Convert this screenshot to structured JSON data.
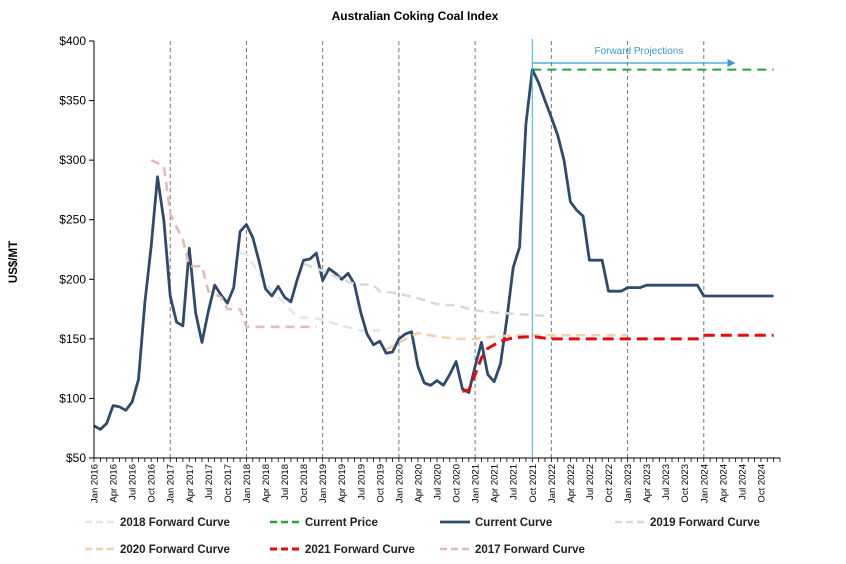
{
  "chart_data": {
    "type": "line",
    "title": "Australian Coking Coal Index",
    "xlabel": "",
    "ylabel": "US$/MT",
    "ylim": [
      50,
      400
    ],
    "x_range": [
      "2016-01",
      "2024-12"
    ],
    "y_ticks": [
      "$50",
      "$100",
      "$150",
      "$200",
      "$250",
      "$300",
      "$350",
      "$400"
    ],
    "x_ticks": [
      "Jan 2016",
      "Apr 2016",
      "Jul 2016",
      "Oct 2016",
      "Jan 2017",
      "Apr 2017",
      "Jul 2017",
      "Oct 2017",
      "Jan 2018",
      "Apr 2018",
      "Jul 2018",
      "Oct 2018",
      "Jan 2019",
      "Apr 2019",
      "Jul 2019",
      "Oct 2019",
      "Jan 2020",
      "Apr 2020",
      "Jul 2020",
      "Oct 2020",
      "Jan 2021",
      "Apr 2021",
      "Jul 2021",
      "Oct 2021",
      "Jan 2022",
      "Apr 2022",
      "Jul 2022",
      "Oct 2022",
      "Jan 2023",
      "Apr 2023",
      "Jul 2023",
      "Oct 2023",
      "Jan 2024",
      "Apr 2024",
      "Jul 2024",
      "Oct 2024"
    ],
    "grid": "vertical dashed at each January",
    "legend_position": "bottom",
    "annotation": {
      "text": "Forward Projections",
      "from": "2021-10",
      "to": "2024-06",
      "color": "#3a9ad9"
    },
    "projection_start": "2021-10",
    "series": [
      {
        "name": "2018 Forward Curve",
        "color": "#dbe8f3",
        "dash": "dashed",
        "width": 2.5,
        "points": [
          [
            "2017-12",
            222
          ],
          [
            "2018-01",
            221
          ],
          [
            "2018-03",
            205
          ],
          [
            "2018-05",
            190
          ],
          [
            "2018-07",
            180
          ],
          [
            "2018-09",
            168
          ],
          [
            "2018-11",
            168
          ],
          [
            "2019-01",
            166
          ],
          [
            "2019-04",
            161
          ],
          [
            "2019-07",
            157
          ],
          [
            "2019-10",
            157
          ]
        ]
      },
      {
        "name": "Current Price",
        "color": "#1ea83c",
        "dash": "dashed",
        "width": 2,
        "points": [
          [
            "2021-10",
            376
          ],
          [
            "2024-12",
            376
          ]
        ]
      },
      {
        "name": "Current Curve",
        "color": "#2e4b6e",
        "dash": "solid",
        "width": 2.8,
        "points": [
          [
            "2016-01",
            77
          ],
          [
            "2016-02",
            74
          ],
          [
            "2016-03",
            79
          ],
          [
            "2016-04",
            94
          ],
          [
            "2016-05",
            93
          ],
          [
            "2016-06",
            90
          ],
          [
            "2016-07",
            97
          ],
          [
            "2016-08",
            116
          ],
          [
            "2016-09",
            180
          ],
          [
            "2016-10",
            228
          ],
          [
            "2016-11",
            286
          ],
          [
            "2016-12",
            249
          ],
          [
            "2017-01",
            186
          ],
          [
            "2017-02",
            164
          ],
          [
            "2017-03",
            161
          ],
          [
            "2017-04",
            226
          ],
          [
            "2017-05",
            172
          ],
          [
            "2017-06",
            147
          ],
          [
            "2017-07",
            173
          ],
          [
            "2017-08",
            195
          ],
          [
            "2017-09",
            187
          ],
          [
            "2017-10",
            180
          ],
          [
            "2017-11",
            193
          ],
          [
            "2017-12",
            240
          ],
          [
            "2018-01",
            246
          ],
          [
            "2018-02",
            235
          ],
          [
            "2018-03",
            215
          ],
          [
            "2018-04",
            192
          ],
          [
            "2018-05",
            186
          ],
          [
            "2018-06",
            194
          ],
          [
            "2018-07",
            185
          ],
          [
            "2018-08",
            181
          ],
          [
            "2018-09",
            200
          ],
          [
            "2018-10",
            216
          ],
          [
            "2018-11",
            217
          ],
          [
            "2018-12",
            222
          ],
          [
            "2019-01",
            199
          ],
          [
            "2019-02",
            209
          ],
          [
            "2019-03",
            205
          ],
          [
            "2019-04",
            200
          ],
          [
            "2019-05",
            205
          ],
          [
            "2019-06",
            196
          ],
          [
            "2019-07",
            172
          ],
          [
            "2019-08",
            154
          ],
          [
            "2019-09",
            145
          ],
          [
            "2019-10",
            148
          ],
          [
            "2019-11",
            138
          ],
          [
            "2019-12",
            139
          ],
          [
            "2020-01",
            150
          ],
          [
            "2020-02",
            154
          ],
          [
            "2020-03",
            156
          ],
          [
            "2020-04",
            127
          ],
          [
            "2020-05",
            113
          ],
          [
            "2020-06",
            111
          ],
          [
            "2020-07",
            115
          ],
          [
            "2020-08",
            111
          ],
          [
            "2020-09",
            120
          ],
          [
            "2020-10",
            131
          ],
          [
            "2020-11",
            108
          ],
          [
            "2020-12",
            105
          ],
          [
            "2021-01",
            127
          ],
          [
            "2021-02",
            147
          ],
          [
            "2021-03",
            120
          ],
          [
            "2021-04",
            114
          ],
          [
            "2021-05",
            129
          ],
          [
            "2021-06",
            167
          ],
          [
            "2021-07",
            210
          ],
          [
            "2021-08",
            227
          ],
          [
            "2021-09",
            330
          ],
          [
            "2021-10",
            376
          ],
          [
            "2021-11",
            365
          ],
          [
            "2021-12",
            350
          ],
          [
            "2022-01",
            336
          ],
          [
            "2022-02",
            321
          ],
          [
            "2022-03",
            300
          ],
          [
            "2022-04",
            265
          ],
          [
            "2022-05",
            258
          ],
          [
            "2022-06",
            253
          ],
          [
            "2022-07",
            216
          ],
          [
            "2022-08",
            216
          ],
          [
            "2022-09",
            216
          ],
          [
            "2022-10",
            190
          ],
          [
            "2022-11",
            190
          ],
          [
            "2022-12",
            190
          ],
          [
            "2023-01",
            193
          ],
          [
            "2023-03",
            193
          ],
          [
            "2023-04",
            195
          ],
          [
            "2023-12",
            195
          ],
          [
            "2024-01",
            186
          ],
          [
            "2024-12",
            186
          ]
        ]
      },
      {
        "name": "2019 Forward Curve",
        "color": "#d9d9d9",
        "dash": "dashed",
        "width": 2.5,
        "points": [
          [
            "2018-10",
            213
          ],
          [
            "2019-01",
            207
          ],
          [
            "2019-04",
            200
          ],
          [
            "2019-06",
            196
          ],
          [
            "2019-09",
            195
          ],
          [
            "2019-10",
            190
          ],
          [
            "2020-01",
            188
          ],
          [
            "2020-04",
            184
          ],
          [
            "2020-07",
            179
          ],
          [
            "2020-10",
            178
          ],
          [
            "2021-01",
            174
          ],
          [
            "2021-04",
            172
          ],
          [
            "2021-07",
            171
          ],
          [
            "2021-10",
            170
          ],
          [
            "2022-01",
            169
          ]
        ]
      },
      {
        "name": "2020 Forward Curve",
        "color": "#f7cfa8",
        "dash": "dashed",
        "width": 2.5,
        "points": [
          [
            "2019-11",
            141
          ],
          [
            "2020-01",
            147
          ],
          [
            "2020-04",
            155
          ],
          [
            "2020-07",
            152
          ],
          [
            "2020-10",
            150
          ],
          [
            "2021-01",
            150
          ],
          [
            "2021-04",
            152
          ],
          [
            "2021-07",
            153
          ],
          [
            "2021-10",
            153
          ],
          [
            "2022-01",
            153
          ],
          [
            "2022-07",
            153
          ],
          [
            "2023-01",
            153
          ]
        ]
      },
      {
        "name": "2021 Forward Curve",
        "color": "#e30b0b",
        "dash": "dashed",
        "width": 3,
        "points": [
          [
            "2020-11",
            106
          ],
          [
            "2020-12",
            107
          ],
          [
            "2021-01",
            120
          ],
          [
            "2021-02",
            134
          ],
          [
            "2021-03",
            142
          ],
          [
            "2021-05",
            148
          ],
          [
            "2021-07",
            151
          ],
          [
            "2021-10",
            152
          ],
          [
            "2022-01",
            150
          ],
          [
            "2022-07",
            150
          ],
          [
            "2023-01",
            150
          ],
          [
            "2023-07",
            150
          ],
          [
            "2023-12",
            150
          ],
          [
            "2024-01",
            153
          ],
          [
            "2024-06",
            153
          ],
          [
            "2024-12",
            153
          ]
        ]
      },
      {
        "name": "2017 Forward Curve",
        "color": "#e8b8b2",
        "dash": "dashed",
        "width": 2.5,
        "points": [
          [
            "2016-10",
            300
          ],
          [
            "2016-12",
            295
          ],
          [
            "2017-01",
            255
          ],
          [
            "2017-03",
            233
          ],
          [
            "2017-04",
            211
          ],
          [
            "2017-06",
            211
          ],
          [
            "2017-07",
            190
          ],
          [
            "2017-09",
            185
          ],
          [
            "2017-10",
            175
          ],
          [
            "2017-12",
            175
          ],
          [
            "2018-01",
            160
          ],
          [
            "2018-04",
            160
          ],
          [
            "2018-07",
            160
          ],
          [
            "2018-10",
            160
          ],
          [
            "2018-12",
            160
          ]
        ]
      }
    ]
  }
}
